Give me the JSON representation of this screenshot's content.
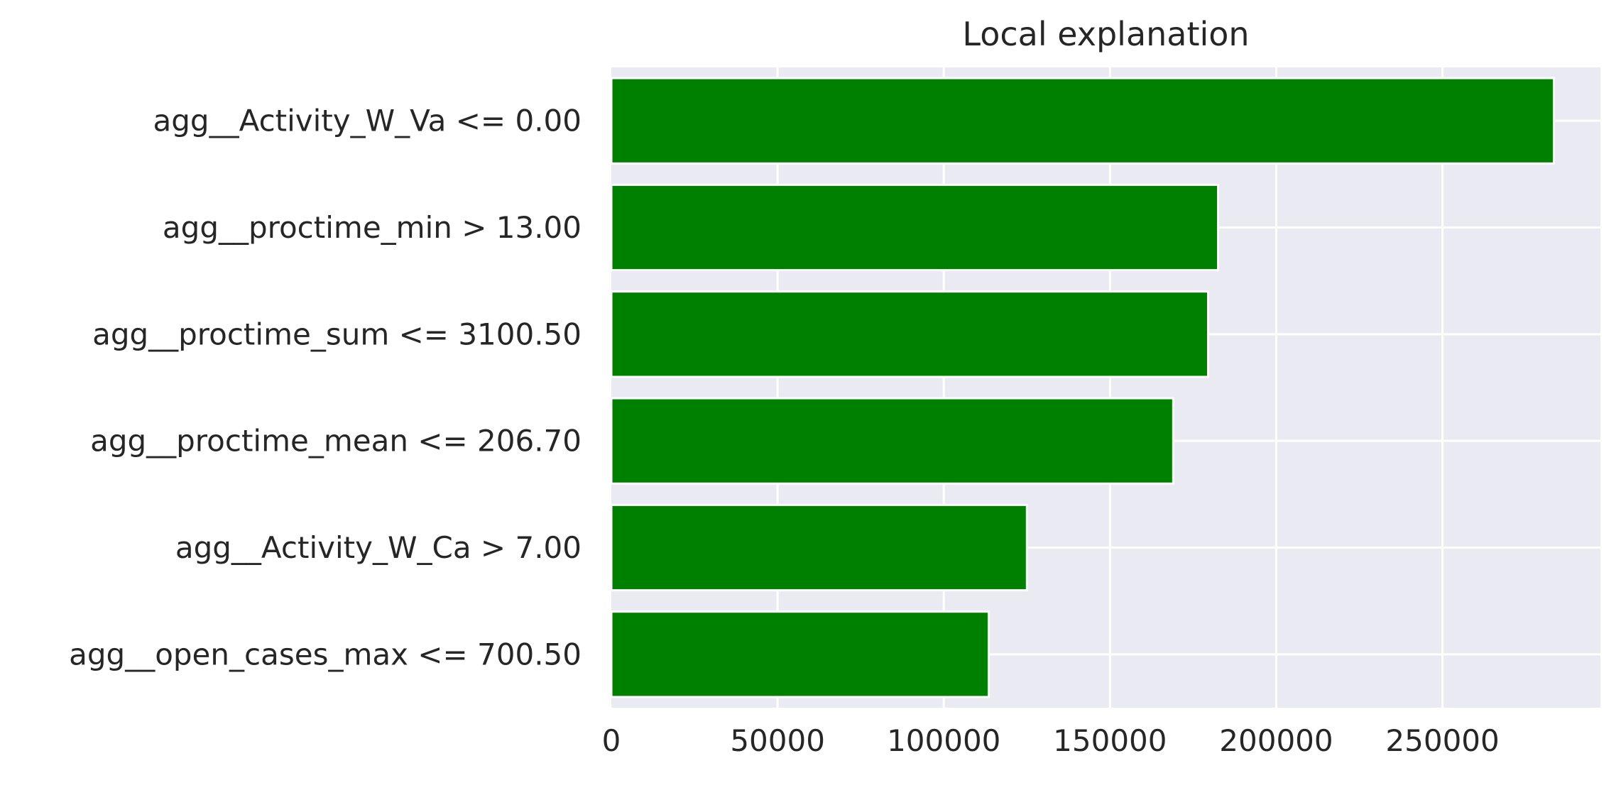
{
  "chart_data": {
    "type": "bar",
    "orientation": "horizontal",
    "title": "Local explanation",
    "xlabel": "",
    "ylabel": "",
    "categories": [
      "agg__Activity_W_Va <= 0.00",
      "agg__proctime_min > 13.00",
      "agg__proctime_sum <= 3100.50",
      "agg__proctime_mean <= 206.70",
      "agg__Activity_W_Ca > 7.00",
      "agg__open_cases_max <= 700.50"
    ],
    "values": [
      283500,
      182500,
      179500,
      169000,
      125000,
      113500
    ],
    "xlim": [
      0,
      297500
    ],
    "xticks": [
      0,
      50000,
      100000,
      150000,
      200000,
      250000
    ],
    "xtick_labels": [
      "0",
      "50000",
      "100000",
      "150000",
      "200000",
      "250000"
    ],
    "grid": true,
    "legend": "none",
    "colors": {
      "bar": "#008000",
      "plot_background": "#eaeaf2",
      "grid": "#ffffff",
      "text": "#262626"
    }
  }
}
